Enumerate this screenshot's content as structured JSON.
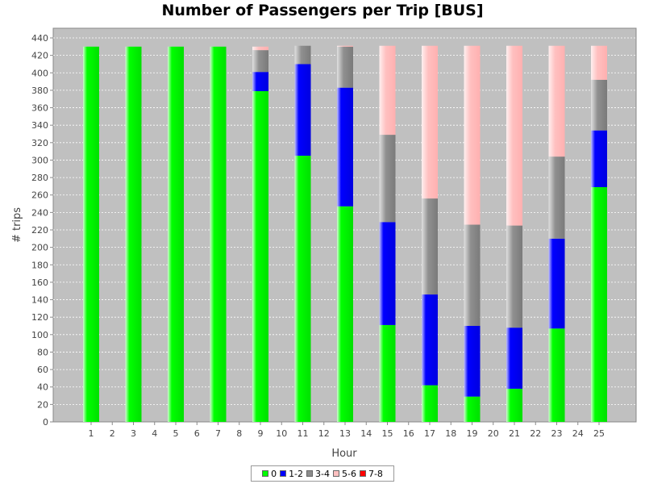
{
  "chart_data": {
    "type": "bar",
    "stacked": true,
    "title": "Number of Passengers per Trip [BUS]",
    "xlabel": "Hour",
    "ylabel": "# trips",
    "ylim": [
      0,
      450
    ],
    "grid": true,
    "legend_position": "bottom",
    "categories": [
      1,
      2,
      3,
      4,
      5,
      6,
      7,
      8,
      9,
      10,
      11,
      12,
      13,
      14,
      15,
      16,
      17,
      18,
      19,
      20,
      21,
      22,
      23,
      24,
      25
    ],
    "yticks": [
      0,
      20,
      40,
      60,
      80,
      100,
      120,
      140,
      160,
      180,
      200,
      220,
      240,
      260,
      280,
      300,
      320,
      340,
      360,
      380,
      400,
      420,
      440
    ],
    "series": [
      {
        "name": "0",
        "color": "#00ff00",
        "values": [
          430,
          0,
          430,
          0,
          430,
          0,
          430,
          0,
          379,
          0,
          305,
          0,
          247,
          0,
          111,
          0,
          42,
          0,
          29,
          0,
          38,
          0,
          107,
          0,
          269
        ]
      },
      {
        "name": "1-2",
        "color": "#0000ff",
        "values": [
          0,
          0,
          0,
          0,
          0,
          0,
          0,
          0,
          22,
          0,
          105,
          0,
          136,
          0,
          118,
          0,
          104,
          0,
          81,
          0,
          70,
          0,
          103,
          0,
          65
        ]
      },
      {
        "name": "3-4",
        "color": "#8c8c8c",
        "values": [
          0,
          0,
          0,
          0,
          0,
          0,
          0,
          0,
          25,
          0,
          21,
          0,
          47,
          0,
          100,
          0,
          110,
          0,
          116,
          0,
          117,
          0,
          94,
          0,
          58
        ]
      },
      {
        "name": "5-6",
        "color": "#ffc0c0",
        "values": [
          0,
          0,
          0,
          0,
          0,
          0,
          0,
          0,
          4,
          0,
          0,
          0,
          1,
          0,
          102,
          0,
          175,
          0,
          205,
          0,
          206,
          0,
          127,
          0,
          39
        ]
      },
      {
        "name": "7-8",
        "color": "#ff0000",
        "values": [
          0,
          0,
          0,
          0,
          0,
          0,
          0,
          0,
          0,
          0,
          0,
          0,
          0,
          0,
          0,
          0,
          0,
          0,
          0,
          0,
          0,
          0,
          0,
          0,
          0
        ]
      }
    ]
  }
}
